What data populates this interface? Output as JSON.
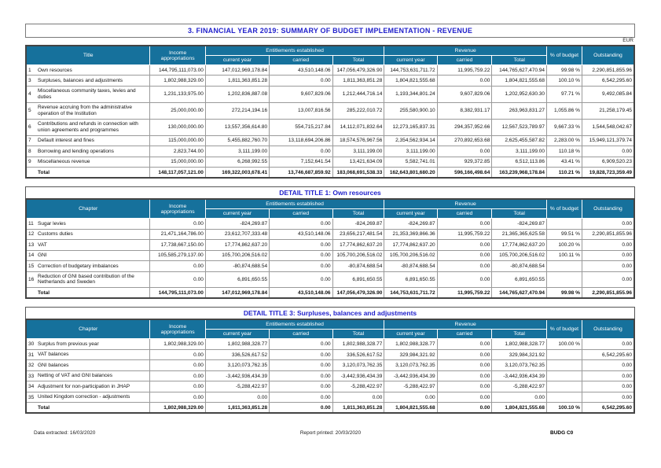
{
  "page": {
    "title": "3. FINANCIAL YEAR 2019: SUMMARY OF  BUDGET IMPLEMENTATION - REVENUE",
    "currency": "EUR",
    "footer": {
      "left": "Data extracted: 16/03/2020",
      "center": "Report printed: 20/03/2020",
      "right": "BUDG C0"
    }
  },
  "colors": {
    "header_bg": "#16719c",
    "title_blue": "#2222cc"
  },
  "header_labels": {
    "income": "Income appropriations",
    "entitlements": "Entitlements established",
    "revenue": "Revenue",
    "current_year": "current year",
    "carried": "carried",
    "total": "Total",
    "pct_budget": "% of budget",
    "outstanding": "Outstanding"
  },
  "tables": [
    {
      "title": null,
      "first_col": "Title",
      "rows": [
        {
          "num": "1",
          "label": "Own resources",
          "values": [
            "144,795,111,073.00",
            "147,012,969,178.84",
            "43,510,148.06",
            "147,056,479,326.90",
            "144,753,631,711.72",
            "11,995,759.22",
            "144,765,627,470.94",
            "99.98 %",
            "2,290,851,855.96"
          ]
        },
        {
          "num": "3",
          "label": "Surpluses, balances and adjustments",
          "values": [
            "1,802,988,329.00",
            "1,811,363,851.28",
            "0.00",
            "1,811,363,851.28",
            "1,804,821,555.68",
            "0.00",
            "1,804,821,555.68",
            "100.10 %",
            "6,542,295.60"
          ]
        },
        {
          "num": "4",
          "label": "Miscellaneous community taxes, levies and duties",
          "values": [
            "1,231,133,975.00",
            "1,202,836,887.08",
            "9,607,829.06",
            "1,212,444,716.14",
            "1,193,344,801.24",
            "9,607,829.06",
            "1,202,952,630.30",
            "97.71 %",
            "9,492,085.84"
          ]
        },
        {
          "num": "5",
          "label": "Revenue accruing from the administrative operation of the Institution",
          "values": [
            "25,000,000.00",
            "272,214,194.16",
            "13,007,816.56",
            "285,222,010.72",
            "255,580,900.10",
            "8,382,931.17",
            "263,963,831.27",
            "1,055.86 %",
            "21,258,179.45"
          ]
        },
        {
          "num": "6",
          "label": "Contributions and refunds in connection with union agreements and programmes",
          "values": [
            "130,000,000.00",
            "13,557,356,614.80",
            "554,715,217.84",
            "14,112,071,832.64",
            "12,273,165,837.31",
            "294,357,952.66",
            "12,567,523,789.97",
            "9,667.33 %",
            "1,544,548,042.67"
          ]
        },
        {
          "num": "7",
          "label": "Default interest and fines",
          "values": [
            "115,000,000.00",
            "5,455,882,760.70",
            "13,118,694,206.86",
            "18,574,576,967.56",
            "2,354,562,934.14",
            "270,892,653.68",
            "2,625,455,587.82",
            "2,283.00 %",
            "15,949,121,379.74"
          ]
        },
        {
          "num": "8",
          "label": "Borrowing and lending operations",
          "values": [
            "2,823,744.00",
            "3,111,199.00",
            "0.00",
            "3,111,199.00",
            "3,111,199.00",
            "0.00",
            "3,111,199.00",
            "110.18 %",
            "0.00"
          ]
        },
        {
          "num": "9",
          "label": "Miscellaneous revenue",
          "values": [
            "15,000,000.00",
            "6,268,992.55",
            "7,152,641.54",
            "13,421,634.09",
            "5,582,741.01",
            "929,372.85",
            "6,512,113.86",
            "43.41 %",
            "6,909,520.23"
          ]
        }
      ],
      "total": {
        "label": "Total",
        "values": [
          "148,117,057,121.00",
          "169,322,003,678.41",
          "13,746,687,859.92",
          "183,068,691,538.33",
          "162,643,801,680.20",
          "596,166,498.64",
          "163,239,968,178.84",
          "110.21 %",
          "19,828,723,359.49"
        ]
      }
    },
    {
      "title": "DETAIL TITLE 1: Own resources",
      "first_col": "Chapter",
      "rows": [
        {
          "num": "11",
          "label": "Sugar levies",
          "values": [
            "0.00",
            "-824,269.87",
            "0.00",
            "-824,269.87",
            "-824,269.87",
            "0.00",
            "-824,269.87",
            "",
            "0.00"
          ]
        },
        {
          "num": "12",
          "label": "Customs duties",
          "values": [
            "21,471,164,786.00",
            "23,612,707,333.48",
            "43,510,148.06",
            "23,656,217,481.54",
            "21,353,369,866.36",
            "11,995,759.22",
            "21,365,365,625.58",
            "99.51 %",
            "2,290,851,855.96"
          ]
        },
        {
          "num": "13",
          "label": "VAT",
          "values": [
            "17,738,667,150.00",
            "17,774,862,637.20",
            "0.00",
            "17,774,862,637.20",
            "17,774,862,637.20",
            "0.00",
            "17,774,862,637.20",
            "100.20 %",
            "0.00"
          ]
        },
        {
          "num": "14",
          "label": "GNI",
          "values": [
            "105,585,279,137.00",
            "105,700,206,516.02",
            "0.00",
            "105,700,206,516.02",
            "105,700,206,516.02",
            "0.00",
            "105,700,206,516.02",
            "100.11 %",
            "0.00"
          ]
        },
        {
          "num": "15",
          "label": "Correction of budgetary imbalances",
          "values": [
            "0.00",
            "-80,874,688.54",
            "0.00",
            "-80,874,688.54",
            "-80,874,688.54",
            "0.00",
            "-80,874,688.54",
            "",
            "0.00"
          ]
        },
        {
          "num": "16",
          "label": "Reduction of GNI based contribution of the Netherlands and Sweden",
          "values": [
            "0.00",
            "6,891,650.55",
            "0.00",
            "6,891,650.55",
            "6,891,650.55",
            "0.00",
            "6,891,650.55",
            "",
            "0.00"
          ]
        }
      ],
      "total": {
        "label": "Total",
        "values": [
          "144,795,111,073.00",
          "147,012,969,178.84",
          "43,510,148.06",
          "147,056,479,326.90",
          "144,753,631,711.72",
          "11,995,759.22",
          "144,765,627,470.94",
          "99.98 %",
          "2,290,851,855.96"
        ]
      }
    },
    {
      "title": "DETAIL TITLE 3: Surpluses, balances and adjustments",
      "first_col": "Chapter",
      "rows": [
        {
          "num": "30",
          "label": "Surplus from previous year",
          "values": [
            "1,802,988,329.00",
            "1,802,988,328.77",
            "0.00",
            "1,802,988,328.77",
            "1,802,988,328.77",
            "0.00",
            "1,802,988,328.77",
            "100.00 %",
            "0.00"
          ]
        },
        {
          "num": "31",
          "label": "VAT balances",
          "values": [
            "0.00",
            "336,526,617.52",
            "0.00",
            "336,526,617.52",
            "329,984,321.92",
            "0.00",
            "329,984,321.92",
            "",
            "6,542,295.60"
          ]
        },
        {
          "num": "32",
          "label": "GNI balances",
          "values": [
            "0.00",
            "3,120,073,762.35",
            "0.00",
            "3,120,073,762.35",
            "3,120,073,762.35",
            "0.00",
            "3,120,073,762.35",
            "",
            "0.00"
          ]
        },
        {
          "num": "33",
          "label": "Netting of VAT and GNI balances",
          "values": [
            "0.00",
            "-3,442,936,434.39",
            "0.00",
            "-3,442,936,434.39",
            "-3,442,936,434.39",
            "0.00",
            "-3,442,936,434.39",
            "",
            "0.00"
          ]
        },
        {
          "num": "34",
          "label": "Adjustment for non-participation in JHAP",
          "values": [
            "0.00",
            "-5,288,422.97",
            "0.00",
            "-5,288,422.97",
            "-5,288,422.97",
            "0.00",
            "-5,288,422.97",
            "",
            "0.00"
          ]
        },
        {
          "num": "35",
          "label": "United Kingdom correction - adjustments",
          "values": [
            "0.00",
            "0.00",
            "0.00",
            "0.00",
            "0.00",
            "0.00",
            "0.00",
            "",
            "0.00"
          ]
        }
      ],
      "total": {
        "label": "Total",
        "values": [
          "1,802,988,329.00",
          "1,811,363,851.28",
          "0.00",
          "1,811,363,851.28",
          "1,804,821,555.68",
          "0.00",
          "1,804,821,555.68",
          "100.10 %",
          "6,542,295.60"
        ]
      }
    }
  ]
}
